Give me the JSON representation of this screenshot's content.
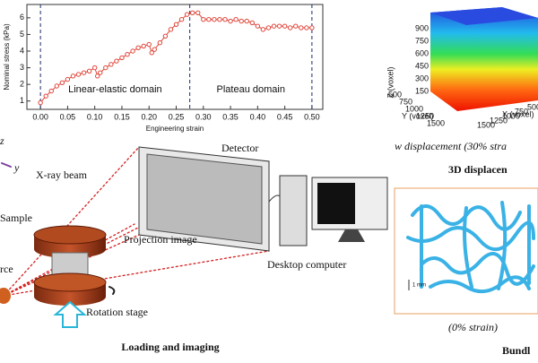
{
  "chart_data": {
    "type": "line",
    "x_label": "Engineering strain",
    "y_label": "Nominal stress (kPa)",
    "x": [
      0,
      0.01,
      0.02,
      0.03,
      0.04,
      0.05,
      0.06,
      0.07,
      0.08,
      0.09,
      0.1,
      0.105,
      0.11,
      0.12,
      0.13,
      0.14,
      0.15,
      0.16,
      0.17,
      0.18,
      0.19,
      0.2,
      0.205,
      0.21,
      0.22,
      0.23,
      0.24,
      0.25,
      0.26,
      0.27,
      0.28,
      0.29,
      0.3,
      0.31,
      0.32,
      0.33,
      0.34,
      0.35,
      0.36,
      0.37,
      0.38,
      0.39,
      0.4,
      0.41,
      0.42,
      0.43,
      0.44,
      0.45,
      0.46,
      0.47,
      0.48,
      0.49,
      0.5
    ],
    "series": [
      {
        "color": "#e0453a",
        "values": [
          0.9,
          1.3,
          1.6,
          1.9,
          2.1,
          2.3,
          2.5,
          2.6,
          2.7,
          2.8,
          3.0,
          2.5,
          2.7,
          3.0,
          3.2,
          3.4,
          3.6,
          3.8,
          4.0,
          4.2,
          4.3,
          4.4,
          3.9,
          4.1,
          4.5,
          4.9,
          5.3,
          5.6,
          5.9,
          6.2,
          6.3,
          6.3,
          5.9,
          5.9,
          5.9,
          5.9,
          5.9,
          5.8,
          5.9,
          5.8,
          5.8,
          5.7,
          5.5,
          5.3,
          5.4,
          5.5,
          5.5,
          5.5,
          5.4,
          5.5,
          5.4,
          5.4,
          5.4
        ]
      }
    ],
    "xlim": [
      -0.025,
      0.52
    ],
    "ylim": [
      0.5,
      6.8
    ],
    "xticks": [
      {
        "value": 0,
        "label": "0.00"
      },
      {
        "value": 0.05,
        "label": "0.05"
      },
      {
        "value": 0.1,
        "label": "0.10"
      },
      {
        "value": 0.15,
        "label": "0.15"
      },
      {
        "value": 0.2,
        "label": "0.20"
      },
      {
        "value": 0.25,
        "label": "0.25"
      },
      {
        "value": 0.3,
        "label": "0.30"
      },
      {
        "value": 0.35,
        "label": "0.35"
      },
      {
        "value": 0.4,
        "label": "0.40"
      },
      {
        "value": 0.45,
        "label": "0.45"
      },
      {
        "value": 0.5,
        "label": "0.50"
      }
    ],
    "yticks": [
      1,
      2,
      3,
      4,
      5,
      6
    ],
    "vlines": [
      0,
      0.275,
      0.5
    ],
    "annotations": [
      "Linear-elastic domain",
      "Plateau domain"
    ]
  },
  "imaging": {
    "axis_z": "z",
    "axis_y": "y",
    "beam": "X-ray beam",
    "detector": "Detector",
    "sample": "Sample",
    "source": "rce",
    "projection": "Projection image",
    "computer": "Desktop computer",
    "stage": "Rotation stage",
    "caption": "Loading and imaging"
  },
  "cube": {
    "z_title": "Z (voxel)",
    "y_title": "Y (voxel)",
    "x_title": "X (voxel)",
    "z_ticks": [
      "900",
      "750",
      "600",
      "450",
      "300",
      "150"
    ],
    "y_ticks": [
      "500",
      "750",
      "1000",
      "1250",
      "1500"
    ],
    "x_ticks": [
      "1500",
      "1250",
      "1000",
      "750",
      "500"
    ],
    "caption": "w displacement (30% stra",
    "title": "3D displacen"
  },
  "bundle": {
    "scale": "1 mm",
    "caption": "(0% strain)",
    "title": "Bundl"
  }
}
